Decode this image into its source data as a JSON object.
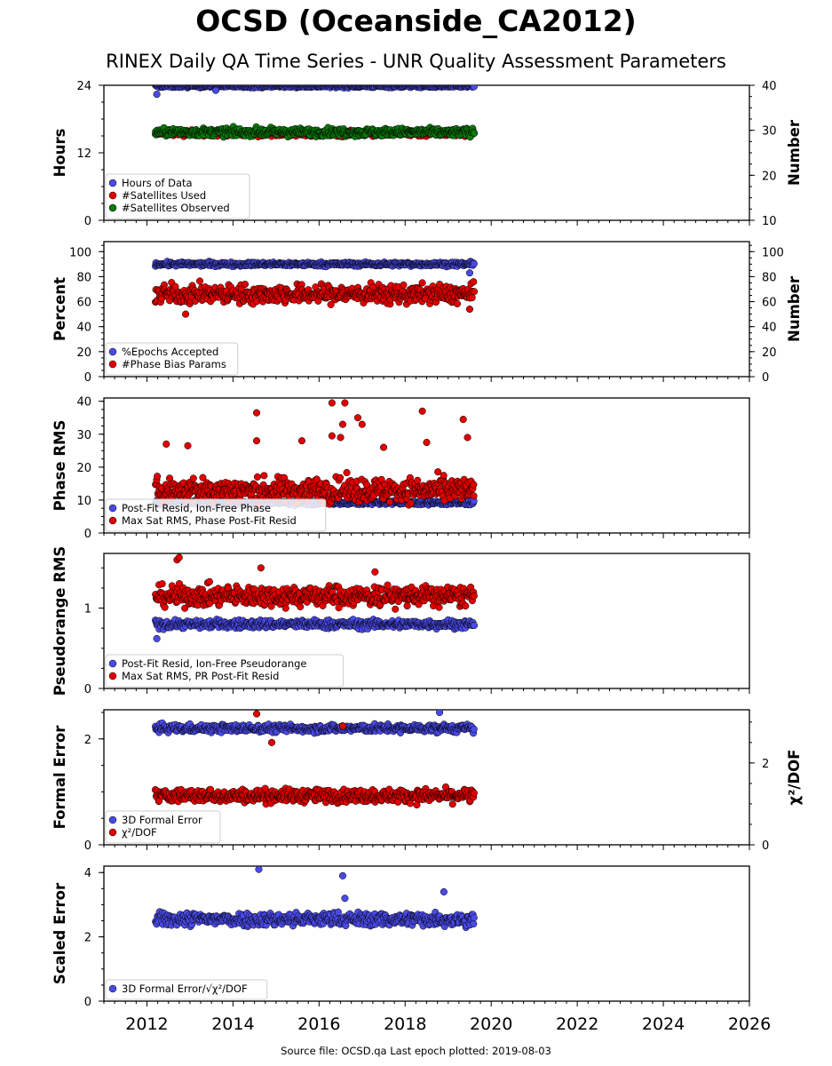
{
  "figure": {
    "title": "OCSD (Oceanside_CA2012)",
    "subtitle": "RINEX Daily QA Time Series - UNR Quality Assessment Parameters",
    "source": "Source file: OCSD.qa Last epoch plotted: 2019-08-03"
  },
  "colors": {
    "blue": "#4a4ae8",
    "red": "#e00000",
    "green": "#0a7a0a",
    "edge": "#000000"
  },
  "chart_data": [
    {
      "type": "scatter",
      "ylabel": "Hours",
      "ylabel_right": "Number",
      "xlim": [
        2011.0,
        2026.0
      ],
      "ylim": [
        0,
        24
      ],
      "ylim_right": [
        10,
        40
      ],
      "yticks": [
        0,
        12,
        24
      ],
      "yticks_right": [
        10,
        20,
        30,
        40
      ],
      "legend": "lower-left",
      "series": [
        {
          "name": "Hours of Data",
          "color": "blue",
          "axis": "left",
          "x_range": [
            2012.2,
            2019.6
          ],
          "center": 23.85,
          "spread": 0.25,
          "outliers": [
            [
              2012.23,
              22.4
            ],
            [
              2013.6,
              23.1
            ]
          ]
        },
        {
          "name": "#Satellites Used",
          "color": "red",
          "axis": "right",
          "x_range": [
            2012.2,
            2019.6
          ],
          "center": 29.3,
          "spread": 0.6,
          "outliers": []
        },
        {
          "name": "#Satellites Observed",
          "color": "green",
          "axis": "right",
          "x_range": [
            2012.2,
            2019.6
          ],
          "center": 29.6,
          "spread": 0.8,
          "outliers": []
        }
      ]
    },
    {
      "type": "scatter",
      "ylabel": "Percent",
      "ylabel_right": "Number",
      "xlim": [
        2011.0,
        2026.0
      ],
      "ylim": [
        0,
        108
      ],
      "ylim_right": [
        0,
        108
      ],
      "yticks": [
        0,
        20,
        40,
        60,
        80,
        100
      ],
      "yticks_right": [
        0,
        20,
        40,
        60,
        80,
        100
      ],
      "legend": "lower-left",
      "series": [
        {
          "name": "%Epochs Accepted",
          "color": "blue",
          "axis": "left",
          "x_range": [
            2012.2,
            2019.6
          ],
          "center": 90,
          "spread": 1.5,
          "outliers": [
            [
              2019.5,
              83
            ]
          ]
        },
        {
          "name": "#Phase Bias Params",
          "color": "red",
          "axis": "right",
          "x_range": [
            2012.2,
            2019.6
          ],
          "center": 66,
          "spread": 7,
          "outliers": [
            [
              2012.9,
              50
            ],
            [
              2019.5,
              54
            ]
          ]
        }
      ]
    },
    {
      "type": "scatter",
      "ylabel": "Phase RMS",
      "xlim": [
        2011.0,
        2026.0
      ],
      "ylim": [
        0,
        41
      ],
      "yticks": [
        0,
        10,
        20,
        30,
        40
      ],
      "legend": "lower-left",
      "series": [
        {
          "name": "Post-Fit Resid, Ion-Free Phase",
          "color": "blue",
          "axis": "left",
          "x_range": [
            2012.2,
            2019.6
          ],
          "center": 9.2,
          "spread": 0.6,
          "outliers": []
        },
        {
          "name": "Max Sat RMS, Phase Post-Fit Resid",
          "color": "red",
          "axis": "left",
          "x_range": [
            2012.2,
            2019.6
          ],
          "center": 13,
          "spread": 3.5,
          "outliers": [
            [
              2014.55,
              36.5
            ],
            [
              2016.3,
              39.5
            ],
            [
              2016.6,
              39.5
            ],
            [
              2016.9,
              35
            ],
            [
              2018.4,
              37
            ],
            [
              2019.35,
              34.5
            ],
            [
              2016.55,
              33
            ],
            [
              2017.0,
              33
            ],
            [
              2016.3,
              29.5
            ],
            [
              2016.5,
              29
            ],
            [
              2019.45,
              29
            ],
            [
              2015.6,
              28
            ],
            [
              2018.5,
              27.5
            ],
            [
              2014.55,
              28
            ],
            [
              2012.45,
              27
            ],
            [
              2012.95,
              26.5
            ],
            [
              2017.5,
              26
            ]
          ]
        }
      ]
    },
    {
      "type": "scatter",
      "ylabel": "Pseudorange RMS",
      "xlim": [
        2011.0,
        2026.0
      ],
      "ylim": [
        0,
        1.68
      ],
      "yticks": [
        0,
        1
      ],
      "legend": "lower-left",
      "series": [
        {
          "name": "Post-Fit Resid, Ion-Free Pseudorange",
          "color": "blue",
          "axis": "left",
          "x_range": [
            2012.2,
            2019.6
          ],
          "center": 0.8,
          "spread": 0.05,
          "outliers": [
            [
              2012.23,
              0.62
            ]
          ]
        },
        {
          "name": "Max Sat RMS, PR Post-Fit Resid",
          "color": "red",
          "axis": "left",
          "x_range": [
            2012.2,
            2019.6
          ],
          "center": 1.15,
          "spread": 0.12,
          "outliers": [
            [
              2012.7,
              1.6
            ],
            [
              2012.75,
              1.63
            ],
            [
              2014.65,
              1.5
            ],
            [
              2017.3,
              1.45
            ]
          ]
        }
      ]
    },
    {
      "type": "scatter",
      "ylabel": "Formal Error",
      "ylabel_right": "χ²/DOF",
      "xlim": [
        2011.0,
        2026.0
      ],
      "ylim": [
        0,
        2.55
      ],
      "ylim_right": [
        0,
        3.3
      ],
      "yticks": [
        0,
        2
      ],
      "yticks_right": [
        0,
        2
      ],
      "legend": "lower-left",
      "series": [
        {
          "name": "3D Formal Error",
          "color": "blue",
          "axis": "left",
          "x_range": [
            2012.2,
            2019.6
          ],
          "center": 2.2,
          "spread": 0.07,
          "outliers": [
            [
              2018.8,
              2.5
            ]
          ]
        },
        {
          "name": "χ²/DOF",
          "color": "red",
          "axis": "right",
          "x_range": [
            2012.2,
            2019.6
          ],
          "center": 1.2,
          "spread": 0.15,
          "outliers": [
            [
              2014.55,
              3.2
            ],
            [
              2016.55,
              2.9
            ],
            [
              2014.9,
              2.5
            ]
          ]
        }
      ]
    },
    {
      "type": "scatter",
      "ylabel": "Scaled Error",
      "xlim": [
        2011.0,
        2026.0
      ],
      "ylim": [
        0,
        4.2
      ],
      "yticks": [
        0,
        2,
        4
      ],
      "xticks": [
        2012,
        2014,
        2016,
        2018,
        2020,
        2022,
        2024,
        2026
      ],
      "legend": "lower-left",
      "series": [
        {
          "name": "3D Formal Error/√χ²/DOF",
          "color": "blue",
          "axis": "left",
          "x_range": [
            2012.2,
            2019.6
          ],
          "center": 2.55,
          "spread": 0.2,
          "outliers": [
            [
              2014.6,
              4.1
            ],
            [
              2016.55,
              3.9
            ],
            [
              2018.9,
              3.4
            ],
            [
              2016.6,
              3.2
            ]
          ]
        }
      ]
    }
  ]
}
